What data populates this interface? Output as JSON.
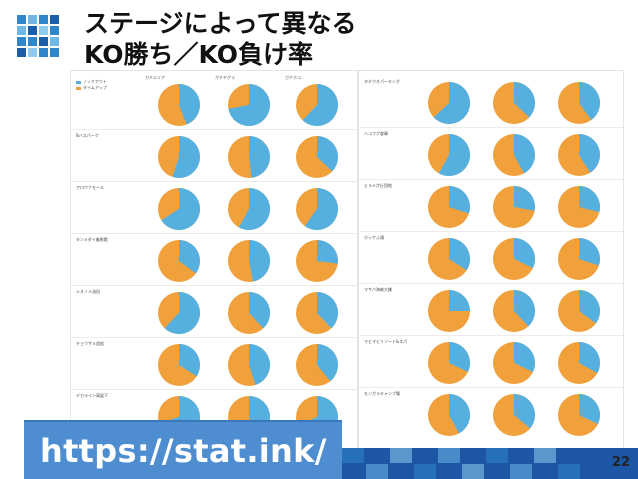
{
  "slide": {
    "title_line1": "ステージによって異なる",
    "title_line2": "KO勝ち／KO負け率",
    "url": "https://stat.ink/",
    "page_number": "22"
  },
  "colors": {
    "ko": "#55b0e0",
    "timeup": "#f1a13b",
    "banner": "#4e8ed0",
    "strip_dark": "#1c56a4"
  },
  "legend": [
    {
      "label": "ノックアウト",
      "color": "#55b0e0"
    },
    {
      "label": "タイムアップ",
      "color": "#f1a13b"
    }
  ],
  "columns": [
    "ガチエリア",
    "ガチヤグラ",
    "ガチホコ"
  ],
  "left_rows": [
    {
      "label": "",
      "ko": [
        0.44,
        0.72,
        0.62
      ]
    },
    {
      "label": "Bバスパーク",
      "ko": [
        0.55,
        0.48,
        0.37
      ]
    },
    {
      "label": "アロワナモール",
      "ko": [
        0.66,
        0.58,
        0.6
      ]
    },
    {
      "label": "キンメダイ美術館",
      "ko": [
        0.35,
        0.47,
        0.27
      ]
    },
    {
      "label": "シオノメ油田",
      "ko": [
        0.62,
        0.38,
        0.38
      ]
    },
    {
      "label": "チョウザメ造船",
      "ko": [
        0.34,
        0.45,
        0.39
      ]
    },
    {
      "label": "デカライン高架下",
      "ko": [
        0.7,
        0.45,
        0.68
      ]
    }
  ],
  "right_rows": [
    {
      "label": "タチウオパーキング",
      "ko": [
        0.63,
        0.37,
        0.4
      ]
    },
    {
      "label": "ハコフグ倉庫",
      "ko": [
        0.58,
        0.42,
        0.41
      ]
    },
    {
      "label": "ヒラメが丘団地",
      "ko": [
        0.3,
        0.28,
        0.29
      ]
    },
    {
      "label": "ホッケふ頭",
      "ko": [
        0.34,
        0.32,
        0.3
      ]
    },
    {
      "label": "マサバ海峡大橋",
      "ko": [
        0.25,
        0.38,
        0.35
      ]
    },
    {
      "label": "マヒマヒリゾート&スパ",
      "ko": [
        0.32,
        0.32,
        0.33
      ]
    },
    {
      "label": "モンガラキャンプ場",
      "ko": [
        0.42,
        0.36,
        0.32
      ]
    }
  ]
}
